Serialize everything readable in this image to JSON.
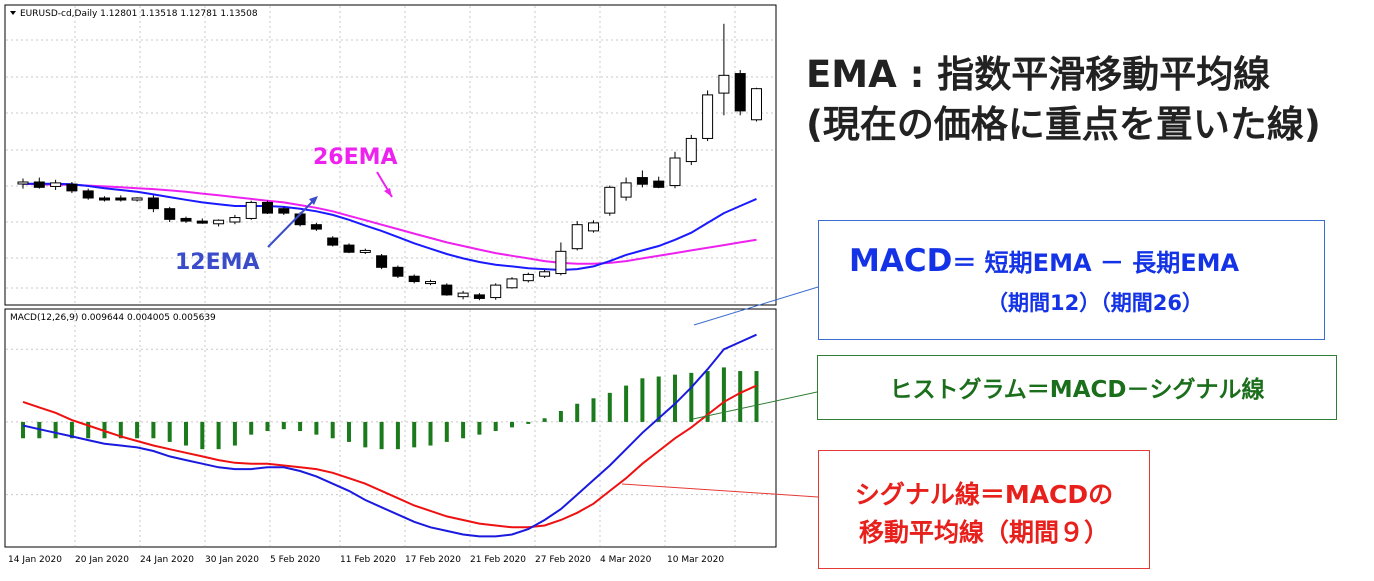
{
  "price_panel": {
    "header": "EURUSD-cd,Daily  1.12801 1.13518 1.12781 1.13508"
  },
  "macd_panel": {
    "header": "MACD(12,26,9) 0.009644 0.004005 0.005639"
  },
  "dates": [
    "14 Jan 2020",
    "20 Jan 2020",
    "24 Jan 2020",
    "30 Jan 2020",
    "5 Feb 2020",
    "11 Feb 2020",
    "17 Feb 2020",
    "21 Feb 2020",
    "27 Feb 2020",
    "4 Mar 2020",
    "10 Mar 2020"
  ],
  "labels": {
    "ema26": "26EMA",
    "ema12": "12EMA"
  },
  "title": {
    "line1": "EMA : 指数平滑移動平均線",
    "line2": "(現在の価格に重点を置いた線)"
  },
  "macd_box": {
    "macd": "MACD",
    "formula": "＝ 短期EMA － 長期EMA",
    "periods": "（期間12）（期間26）"
  },
  "hist_box": {
    "text": "ヒストグラム＝MACD－シグナル線"
  },
  "signal_box": {
    "line1": "シグナル線＝MACDの",
    "line2": "移動平均線（期間９）"
  },
  "colors": {
    "ema26": "#ee22ee",
    "ema12": "#1a1aff",
    "macd": "#1a1adf",
    "signal": "#ee1111",
    "histogram": "#1b7a1b",
    "macd_box": "#1533e6",
    "hist_box": "#1b6e1b",
    "signal_box": "#e8201c"
  },
  "chart_data": [
    {
      "type": "candlestick",
      "title": "EURUSD-cd,Daily",
      "ohlc_last": {
        "open": 1.12801,
        "high": 1.13518,
        "low": 1.12781,
        "close": 1.13508
      },
      "candles": [
        {
          "o": 1.1136,
          "h": 1.1148,
          "l": 1.1125,
          "c": 1.114
        },
        {
          "o": 1.114,
          "h": 1.115,
          "l": 1.1125,
          "c": 1.1128
        },
        {
          "o": 1.113,
          "h": 1.1145,
          "l": 1.1122,
          "c": 1.1138
        },
        {
          "o": 1.1135,
          "h": 1.114,
          "l": 1.1115,
          "c": 1.112
        },
        {
          "o": 1.112,
          "h": 1.1125,
          "l": 1.11,
          "c": 1.1104
        },
        {
          "o": 1.1104,
          "h": 1.1108,
          "l": 1.1096,
          "c": 1.1102
        },
        {
          "o": 1.1104,
          "h": 1.111,
          "l": 1.1096,
          "c": 1.11
        },
        {
          "o": 1.11,
          "h": 1.1106,
          "l": 1.1096,
          "c": 1.1104
        },
        {
          "o": 1.1104,
          "h": 1.111,
          "l": 1.1072,
          "c": 1.108
        },
        {
          "o": 1.108,
          "h": 1.1084,
          "l": 1.105,
          "c": 1.1056
        },
        {
          "o": 1.1058,
          "h": 1.1062,
          "l": 1.1048,
          "c": 1.1052
        },
        {
          "o": 1.1052,
          "h": 1.1058,
          "l": 1.1046,
          "c": 1.105
        },
        {
          "o": 1.1046,
          "h": 1.1056,
          "l": 1.104,
          "c": 1.1054
        },
        {
          "o": 1.105,
          "h": 1.1066,
          "l": 1.1045,
          "c": 1.106
        },
        {
          "o": 1.1058,
          "h": 1.1098,
          "l": 1.1055,
          "c": 1.1094
        },
        {
          "o": 1.1094,
          "h": 1.1098,
          "l": 1.1068,
          "c": 1.107
        },
        {
          "o": 1.108,
          "h": 1.1084,
          "l": 1.1066,
          "c": 1.107
        },
        {
          "o": 1.1068,
          "h": 1.1072,
          "l": 1.104,
          "c": 1.1044
        },
        {
          "o": 1.1044,
          "h": 1.1048,
          "l": 1.103,
          "c": 1.1034
        },
        {
          "o": 1.1014,
          "h": 1.1018,
          "l": 1.0995,
          "c": 1.0998
        },
        {
          "o": 1.0998,
          "h": 1.1002,
          "l": 1.098,
          "c": 1.0982
        },
        {
          "o": 1.0982,
          "h": 1.099,
          "l": 1.0978,
          "c": 1.0986
        },
        {
          "o": 1.0974,
          "h": 1.0978,
          "l": 1.0944,
          "c": 1.0948
        },
        {
          "o": 1.0948,
          "h": 1.0952,
          "l": 1.0924,
          "c": 1.0928
        },
        {
          "o": 1.0928,
          "h": 1.0932,
          "l": 1.0912,
          "c": 1.0916
        },
        {
          "o": 1.0912,
          "h": 1.092,
          "l": 1.0908,
          "c": 1.0916
        },
        {
          "o": 1.0908,
          "h": 1.0912,
          "l": 1.0884,
          "c": 1.0886
        },
        {
          "o": 1.0882,
          "h": 1.0895,
          "l": 1.0876,
          "c": 1.089
        },
        {
          "o": 1.0886,
          "h": 1.089,
          "l": 1.0874,
          "c": 1.0878
        },
        {
          "o": 1.088,
          "h": 1.0912,
          "l": 1.0875,
          "c": 1.0908
        },
        {
          "o": 1.0902,
          "h": 1.0926,
          "l": 1.09,
          "c": 1.0922
        },
        {
          "o": 1.0918,
          "h": 1.0936,
          "l": 1.0914,
          "c": 1.0932
        },
        {
          "o": 1.0928,
          "h": 1.0942,
          "l": 1.0924,
          "c": 1.0938
        },
        {
          "o": 1.0934,
          "h": 1.1004,
          "l": 1.093,
          "c": 1.0984
        },
        {
          "o": 1.099,
          "h": 1.1052,
          "l": 1.0986,
          "c": 1.1044
        },
        {
          "o": 1.103,
          "h": 1.1054,
          "l": 1.1026,
          "c": 1.1048
        },
        {
          "o": 1.107,
          "h": 1.1132,
          "l": 1.1064,
          "c": 1.1128
        },
        {
          "o": 1.1106,
          "h": 1.115,
          "l": 1.1098,
          "c": 1.1138
        },
        {
          "o": 1.115,
          "h": 1.1166,
          "l": 1.1128,
          "c": 1.1135
        },
        {
          "o": 1.1142,
          "h": 1.1152,
          "l": 1.1126,
          "c": 1.1128
        },
        {
          "o": 1.1132,
          "h": 1.1208,
          "l": 1.1126,
          "c": 1.1194
        },
        {
          "o": 1.1186,
          "h": 1.1246,
          "l": 1.1178,
          "c": 1.1238
        },
        {
          "o": 1.1238,
          "h": 1.1346,
          "l": 1.1232,
          "c": 1.1336
        },
        {
          "o": 1.134,
          "h": 1.1496,
          "l": 1.129,
          "c": 1.138
        },
        {
          "o": 1.1384,
          "h": 1.1392,
          "l": 1.129,
          "c": 1.13
        },
        {
          "o": 1.128,
          "h": 1.1352,
          "l": 1.1276,
          "c": 1.135
        }
      ],
      "ema26": [
        1.1136,
        1.1135,
        1.1134,
        1.1134,
        1.1132,
        1.113,
        1.1128,
        1.1126,
        1.1124,
        1.1121,
        1.1118,
        1.1114,
        1.111,
        1.1106,
        1.1102,
        1.1098,
        1.1094,
        1.1088,
        1.1082,
        1.1074,
        1.1064,
        1.1054,
        1.1044,
        1.1034,
        1.1024,
        1.1014,
        1.1004,
        1.0996,
        1.0988,
        1.098,
        1.0974,
        1.0968,
        1.0962,
        1.0958,
        1.0956,
        1.0956,
        1.0958,
        1.0962,
        1.0968,
        1.0974,
        1.098,
        1.0986,
        1.0992,
        1.0998,
        1.1004,
        1.101
      ],
      "ema12": [
        1.1136,
        1.1136,
        1.1136,
        1.1135,
        1.1131,
        1.1126,
        1.1122,
        1.1118,
        1.1112,
        1.1106,
        1.11,
        1.1094,
        1.109,
        1.1086,
        1.1086,
        1.1086,
        1.1084,
        1.108,
        1.1074,
        1.1066,
        1.1055,
        1.1042,
        1.103,
        1.1016,
        1.1002,
        1.099,
        1.0978,
        1.0968,
        1.096,
        1.0954,
        1.095,
        1.0946,
        1.0944,
        1.0942,
        1.0944,
        1.095,
        1.0962,
        1.0976,
        1.0986,
        1.0996,
        1.101,
        1.1026,
        1.1048,
        1.107,
        1.1086,
        1.1102
      ]
    },
    {
      "type": "line",
      "title": "MACD(12,26,9)",
      "values_last": {
        "macd": 0.009644,
        "signal": 0.004005,
        "histogram": 0.005639
      },
      "macd": [
        -0.0004,
        -0.0008,
        -0.0012,
        -0.0016,
        -0.002,
        -0.0024,
        -0.0026,
        -0.0028,
        -0.0032,
        -0.0038,
        -0.0042,
        -0.0046,
        -0.005,
        -0.0052,
        -0.0052,
        -0.005,
        -0.005,
        -0.0054,
        -0.006,
        -0.0068,
        -0.0076,
        -0.0086,
        -0.0094,
        -0.0102,
        -0.011,
        -0.0116,
        -0.012,
        -0.0124,
        -0.0126,
        -0.0126,
        -0.0124,
        -0.0118,
        -0.0108,
        -0.0096,
        -0.008,
        -0.0064,
        -0.0048,
        -0.003,
        -0.0012,
        0.0004,
        0.002,
        0.0038,
        0.0058,
        0.008,
        0.0088,
        0.0096
      ],
      "signal": [
        0.0022,
        0.0016,
        0.001,
        0.0002,
        -0.0004,
        -0.001,
        -0.0016,
        -0.0021,
        -0.0026,
        -0.003,
        -0.0034,
        -0.0038,
        -0.0042,
        -0.0045,
        -0.0046,
        -0.0046,
        -0.0048,
        -0.005,
        -0.0052,
        -0.0056,
        -0.0062,
        -0.0068,
        -0.0076,
        -0.0084,
        -0.0092,
        -0.0098,
        -0.0104,
        -0.0108,
        -0.0112,
        -0.0114,
        -0.0116,
        -0.0116,
        -0.0114,
        -0.0108,
        -0.01,
        -0.009,
        -0.0076,
        -0.0062,
        -0.0046,
        -0.0032,
        -0.0018,
        -0.0006,
        0.0008,
        0.0022,
        0.0032,
        0.004
      ],
      "histogram": [
        -0.0018,
        -0.0018,
        -0.0018,
        -0.0018,
        -0.0018,
        -0.0018,
        -0.0018,
        -0.0018,
        -0.0018,
        -0.0022,
        -0.0026,
        -0.003,
        -0.003,
        -0.0026,
        -0.0014,
        -0.001,
        -0.0008,
        -0.001,
        -0.0014,
        -0.0018,
        -0.0022,
        -0.0028,
        -0.003,
        -0.003,
        -0.0028,
        -0.0026,
        -0.0022,
        -0.0018,
        -0.0014,
        -0.001,
        -0.0006,
        -0.0002,
        0.0004,
        0.0012,
        0.002,
        0.0026,
        0.0032,
        0.004,
        0.0048,
        0.005,
        0.0052,
        0.0054,
        0.0056,
        0.006,
        0.0056,
        0.0056
      ]
    }
  ]
}
